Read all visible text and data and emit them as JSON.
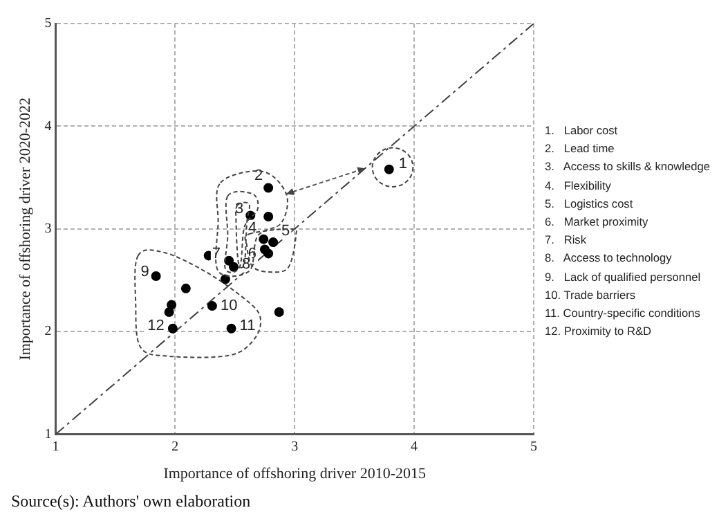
{
  "chart_data": {
    "type": "scatter",
    "xlabel": "Importance of offshoring driver 2010-2015",
    "ylabel": "Importance of offshoring driver 2020-2022",
    "xlim": [
      1,
      5
    ],
    "ylim": [
      1,
      5
    ],
    "xticks": [
      1,
      2,
      3,
      4,
      5
    ],
    "yticks": [
      1,
      2,
      3,
      4,
      5
    ],
    "grid": true,
    "marker": "circle",
    "series": [
      {
        "color": "#000000",
        "x": [
          3.79,
          2.78,
          2.63,
          2.78,
          2.74,
          2.82,
          2.75,
          2.78,
          2.45,
          2.28,
          2.49,
          2.42,
          1.84,
          2.09,
          1.97,
          1.95,
          2.31,
          2.87,
          1.98,
          2.47
        ],
        "values": [
          3.58,
          3.4,
          3.13,
          3.12,
          2.9,
          2.87,
          2.8,
          2.76,
          2.69,
          2.74,
          2.63,
          2.51,
          2.54,
          2.42,
          2.26,
          2.19,
          2.25,
          2.19,
          2.03,
          2.03
        ]
      },
      {
        "type": "line",
        "color": "#404040",
        "x": [
          1,
          5
        ],
        "values": [
          1,
          5
        ],
        "line_style": "dashed",
        "marker": "none"
      }
    ],
    "annotations": [
      {
        "text": "1",
        "x": 3.79,
        "y": 3.58
      },
      {
        "text": "2",
        "x": 2.78,
        "y": 3.4
      },
      {
        "text": "3",
        "x": 2.63,
        "y": 3.13
      },
      {
        "text": "4",
        "x": 2.74,
        "y": 2.9
      },
      {
        "text": "5",
        "x": 2.82,
        "y": 2.87
      },
      {
        "text": "6",
        "x": 2.75,
        "y": 2.8
      },
      {
        "text": "7",
        "x": 2.45,
        "y": 2.69
      },
      {
        "text": "8",
        "x": 2.49,
        "y": 2.63
      },
      {
        "text": "9",
        "x": 1.84,
        "y": 2.54
      },
      {
        "text": "10",
        "x": 2.31,
        "y": 2.25
      },
      {
        "text": "11",
        "x": 2.47,
        "y": 2.03
      },
      {
        "text": "12",
        "x": 1.98,
        "y": 2.03
      },
      "1.   Labor cost",
      "2.   Lead time",
      "3.   Access to skills & knowledge",
      "4.   Flexibility",
      "5.   Logistics cost",
      "6.   Market proximity",
      "7.   Risk",
      "8.   Access to technology",
      "9.   Lack of qualified personnel",
      "10. Trade barriers",
      "11. Country-specific conditions",
      "12. Proximity to R&D",
      "Source(s): Authors' own elaboration"
    ]
  }
}
